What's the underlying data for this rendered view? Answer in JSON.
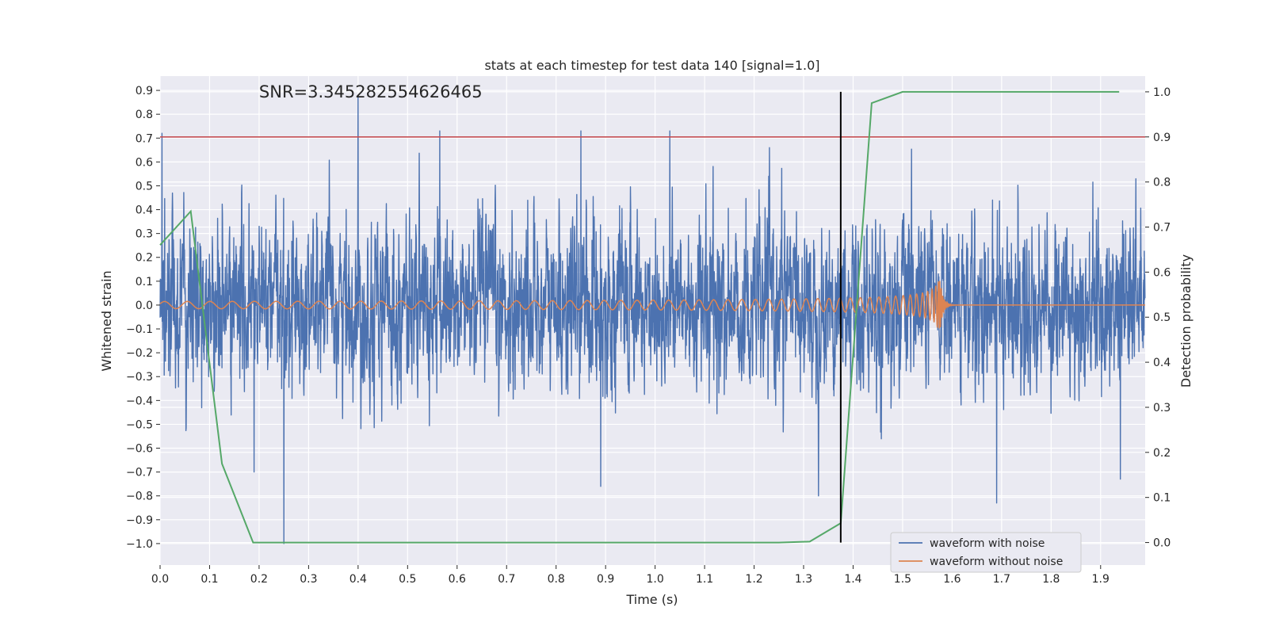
{
  "chart_data": {
    "type": "line",
    "title": "stats at each timestep for test data 140 [signal=1.0]",
    "xlabel": "Time (s)",
    "ylabel": "Whitened strain",
    "y2label": "Detection probability",
    "xlim": [
      0.0,
      1.99
    ],
    "ylim": [
      -1.09,
      0.96
    ],
    "y2lim": [
      -0.05,
      1.035
    ],
    "x_ticks": [
      0.0,
      0.1,
      0.2,
      0.3,
      0.4,
      0.5,
      0.6,
      0.7,
      0.8,
      0.9,
      1.0,
      1.1,
      1.2,
      1.3,
      1.4,
      1.5,
      1.6,
      1.7,
      1.8,
      1.9
    ],
    "x_tick_labels": [
      "0.0",
      "0.1",
      "0.2",
      "0.3",
      "0.4",
      "0.5",
      "0.6",
      "0.7",
      "0.8",
      "0.9",
      "1.0",
      "1.1",
      "1.2",
      "1.3",
      "1.4",
      "1.5",
      "1.6",
      "1.7",
      "1.8",
      "1.9"
    ],
    "y_ticks": [
      -1.0,
      -0.9,
      -0.8,
      -0.7,
      -0.6,
      -0.5,
      -0.4,
      -0.3,
      -0.2,
      -0.1,
      0.0,
      0.1,
      0.2,
      0.3,
      0.4,
      0.5,
      0.6,
      0.7,
      0.8,
      0.9
    ],
    "y_tick_labels": [
      "−1.0",
      "−0.9",
      "−0.8",
      "−0.7",
      "−0.6",
      "−0.5",
      "−0.4",
      "−0.3",
      "−0.2",
      "−0.1",
      "0.0",
      "0.1",
      "0.2",
      "0.3",
      "0.4",
      "0.5",
      "0.6",
      "0.7",
      "0.8",
      "0.9"
    ],
    "y2_ticks": [
      0.0,
      0.1,
      0.2,
      0.3,
      0.4,
      0.5,
      0.6,
      0.7,
      0.8,
      0.9,
      1.0
    ],
    "y2_tick_labels": [
      "0.0",
      "0.1",
      "0.2",
      "0.3",
      "0.4",
      "0.5",
      "0.6",
      "0.7",
      "0.8",
      "0.9",
      "1.0"
    ],
    "grid": true,
    "background_color": "#EAEAF2",
    "annotation": {
      "text": "SNR=3.345282554626465",
      "x": 0.2,
      "y": 0.87
    },
    "legend": {
      "placement": "lower-right",
      "entries": [
        "waveform with noise",
        "waveform without noise"
      ]
    },
    "series": [
      {
        "name": "waveform with noise",
        "axis": "left",
        "color": "#4C72B0",
        "kind": "noise",
        "sample_rate": 2048,
        "duration": 1.99,
        "typical_amplitude": 0.28,
        "peaks": [
          {
            "x": 0.004,
            "y": 0.72
          },
          {
            "x": 0.4,
            "y": 0.87
          },
          {
            "x": 0.565,
            "y": 0.73
          },
          {
            "x": 0.85,
            "y": 0.73
          },
          {
            "x": 1.03,
            "y": 0.73
          },
          {
            "x": 0.25,
            "y": -1.0
          },
          {
            "x": 1.33,
            "y": -0.8
          },
          {
            "x": 1.69,
            "y": -0.83
          },
          {
            "x": 0.19,
            "y": -0.7
          },
          {
            "x": 0.89,
            "y": -0.76
          },
          {
            "x": 1.94,
            "y": -0.73
          }
        ]
      },
      {
        "name": "waveform without noise",
        "axis": "left",
        "color": "#DD8452",
        "kind": "chirp",
        "merger_time": 1.575,
        "amplitude_start": 0.015,
        "amplitude_peak": 0.12
      },
      {
        "name": "detection probability",
        "axis": "right",
        "color": "#55A868",
        "points": [
          [
            0.0,
            0.66
          ],
          [
            0.062,
            0.735
          ],
          [
            0.125,
            0.175
          ],
          [
            0.188,
            0.0
          ],
          [
            0.25,
            0.0
          ],
          [
            0.5,
            0.0
          ],
          [
            0.75,
            0.0
          ],
          [
            1.0,
            0.0
          ],
          [
            1.25,
            0.0
          ],
          [
            1.3125,
            0.002
          ],
          [
            1.375,
            0.043
          ],
          [
            1.4375,
            0.975
          ],
          [
            1.5,
            1.0
          ],
          [
            1.9375,
            1.0
          ]
        ]
      }
    ],
    "threshold": {
      "axis": "right",
      "value": 0.9,
      "color": "#C44E52"
    },
    "marker_vline": {
      "x": 1.375,
      "y_range": [
        0.0,
        1.0
      ],
      "axis": "right",
      "color": "#000000"
    }
  }
}
